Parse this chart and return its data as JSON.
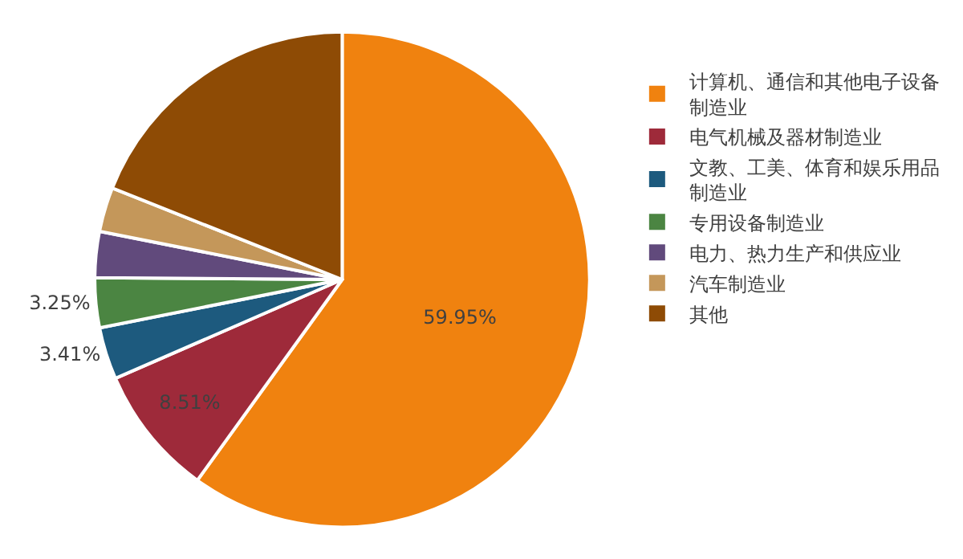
{
  "chart_data": {
    "type": "pie",
    "categories": [
      "计算机、通信和其他电子设备制造业",
      "电气机械及器材制造业",
      "文教、工美、体育和娱乐用品制造业",
      "专用设备制造业",
      "电力、热力生产和供应业",
      "汽车制造业",
      "其他"
    ],
    "values": [
      59.95,
      8.51,
      3.41,
      3.25,
      3.0,
      2.9,
      18.98
    ],
    "value_labels": [
      "59.95%",
      "8.51%",
      "3.41%",
      "3.25%",
      null,
      null,
      null
    ],
    "colors": [
      "#f0820f",
      "#9e2a3a",
      "#1d5a7e",
      "#4b8542",
      "#614a7c",
      "#c4975a",
      "#8e4b05"
    ],
    "legend": "right"
  }
}
